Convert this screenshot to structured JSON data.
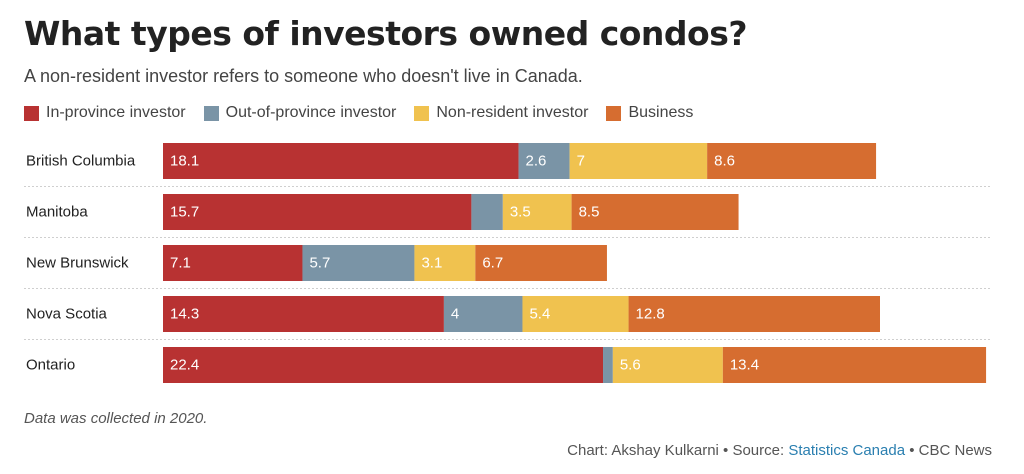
{
  "header": {
    "title": "What types of investors owned condos?",
    "subtitle": "A non-resident investor refers to someone who doesn't live in Canada."
  },
  "legend": [
    {
      "label": "In-province investor",
      "color": "#b83232"
    },
    {
      "label": "Out-of-province investor",
      "color": "#7a94a6"
    },
    {
      "label": "Non-resident investor",
      "color": "#f0c24f"
    },
    {
      "label": "Business",
      "color": "#d66d30"
    }
  ],
  "chart_data": {
    "type": "bar",
    "orientation": "horizontal",
    "stacked": true,
    "categories": [
      "British Columbia",
      "Manitoba",
      "New Brunswick",
      "Nova Scotia",
      "Ontario"
    ],
    "series": [
      {
        "name": "In-province investor",
        "color": "#b83232",
        "values": [
          18.1,
          15.7,
          7.1,
          14.3,
          22.4
        ],
        "labels": [
          "18.1",
          "15.7",
          "7.1",
          "14.3",
          "22.4"
        ]
      },
      {
        "name": "Out-of-province investor",
        "color": "#7a94a6",
        "values": [
          2.6,
          1.6,
          5.7,
          4,
          0.5
        ],
        "labels": [
          "2.6",
          "",
          "5.7",
          "4",
          ""
        ]
      },
      {
        "name": "Non-resident investor",
        "color": "#f0c24f",
        "values": [
          7,
          3.5,
          3.1,
          5.4,
          5.6
        ],
        "labels": [
          "7",
          "3.5",
          "3.1",
          "5.4",
          "5.6"
        ]
      },
      {
        "name": "Business",
        "color": "#d66d30",
        "values": [
          8.6,
          8.5,
          6.7,
          12.8,
          13.4
        ],
        "labels": [
          "8.6",
          "8.5",
          "6.7",
          "12.8",
          "13.4"
        ]
      }
    ],
    "xlim": [
      0,
      42.1
    ],
    "grid": false,
    "legend_position": "top-left"
  },
  "footer": {
    "note": "Data was collected in 2020.",
    "credit_prefix": "Chart: Akshay Kulkarni • Source: ",
    "source_link": "Statistics Canada",
    "credit_suffix": " • CBC News"
  }
}
